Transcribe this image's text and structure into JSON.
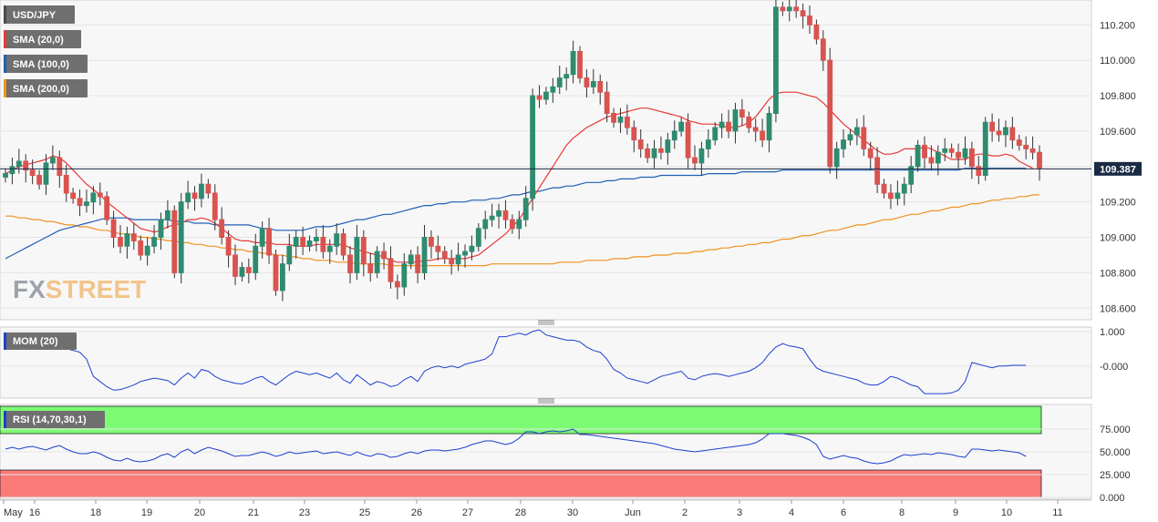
{
  "symbol": "USD/JPY",
  "legend": [
    {
      "label": "USD/JPY",
      "color": "#4a4a4a"
    },
    {
      "label": "SMA (20,0)",
      "color": "#e53935"
    },
    {
      "label": "SMA (100,0)",
      "color": "#1f5fb3"
    },
    {
      "label": "SMA (200,0)",
      "color": "#f0921e"
    }
  ],
  "watermark": {
    "part1": "FX",
    "part2": "STREET"
  },
  "current_price": "109.387",
  "x_axis_labels": [
    "May",
    "16",
    "18",
    "19",
    "20",
    "21",
    "23",
    "25",
    "26",
    "27",
    "28",
    "30",
    "Jun",
    "2",
    "3",
    "4",
    "6",
    "8",
    "9",
    "10",
    "11"
  ],
  "chart_data": [
    {
      "type": "candlestick",
      "title": "USD/JPY",
      "yticks": [
        "110.200",
        "110.000",
        "109.800",
        "109.600",
        "109.400",
        "109.200",
        "109.000",
        "108.800",
        "108.600"
      ],
      "ylim": [
        108.55,
        110.32
      ],
      "current_price": 109.387,
      "closes": [
        109.36,
        109.4,
        109.43,
        109.38,
        109.35,
        109.3,
        109.42,
        109.45,
        109.35,
        109.25,
        109.22,
        109.18,
        109.2,
        109.25,
        109.23,
        109.1,
        109.0,
        108.95,
        109.02,
        108.98,
        108.9,
        108.95,
        109.0,
        109.1,
        109.15,
        108.8,
        109.2,
        109.25,
        109.22,
        109.3,
        109.25,
        109.1,
        109.0,
        108.9,
        108.78,
        108.83,
        108.8,
        108.95,
        109.05,
        108.9,
        108.7,
        108.85,
        108.95,
        109.0,
        108.95,
        108.98,
        109.0,
        108.92,
        108.95,
        109.02,
        108.9,
        108.8,
        109.0,
        108.85,
        108.8,
        108.92,
        108.88,
        108.75,
        108.72,
        108.85,
        108.9,
        108.8,
        109.0,
        108.95,
        108.92,
        108.88,
        108.85,
        108.9,
        108.92,
        108.95,
        109.05,
        109.1,
        109.12,
        109.15,
        109.1,
        109.05,
        109.1,
        109.22,
        109.8,
        109.78,
        109.82,
        109.85,
        109.9,
        109.92,
        110.05,
        109.9,
        109.85,
        109.88,
        109.82,
        109.7,
        109.65,
        109.68,
        109.62,
        109.55,
        109.5,
        109.45,
        109.5,
        109.48,
        109.55,
        109.6,
        109.65,
        109.45,
        109.42,
        109.5,
        109.55,
        109.62,
        109.65,
        109.6,
        109.72,
        109.68,
        109.62,
        109.6,
        109.55,
        109.7,
        110.3,
        110.28,
        110.3,
        110.28,
        110.25,
        110.2,
        110.12,
        110.0,
        109.4,
        109.5,
        109.55,
        109.58,
        109.62,
        109.5,
        109.45,
        109.3,
        109.25,
        109.22,
        109.25,
        109.3,
        109.4,
        109.52,
        109.45,
        109.42,
        109.48,
        109.5,
        109.48,
        109.45,
        109.5,
        109.4,
        109.35,
        109.65,
        109.6,
        109.58,
        109.62,
        109.55,
        109.52,
        109.5,
        109.48,
        109.39
      ],
      "sma20": [
        109.36,
        109.38,
        109.4,
        109.41,
        109.42,
        109.43,
        109.44,
        109.46,
        109.45,
        109.42,
        109.38,
        109.34,
        109.3,
        109.27,
        109.24,
        109.2,
        109.17,
        109.14,
        109.11,
        109.08,
        109.05,
        109.04,
        109.03,
        109.04,
        109.06,
        109.07,
        109.08,
        109.1,
        109.1,
        109.11,
        109.1,
        109.08,
        109.05,
        109.02,
        108.99,
        108.98,
        108.98,
        108.97,
        108.97,
        108.97,
        108.96,
        108.96,
        108.96,
        108.95,
        108.95,
        108.95,
        108.96,
        108.96,
        108.96,
        108.96,
        108.96,
        108.94,
        108.93,
        108.92,
        108.91,
        108.9,
        108.89,
        108.87,
        108.86,
        108.86,
        108.86,
        108.86,
        108.87,
        108.87,
        108.88,
        108.88,
        108.88,
        108.88,
        108.88,
        108.89,
        108.9,
        108.93,
        108.96,
        108.99,
        109.02,
        109.06,
        109.1,
        109.16,
        109.22,
        109.28,
        109.34,
        109.4,
        109.46,
        109.52,
        109.56,
        109.59,
        109.62,
        109.64,
        109.66,
        109.68,
        109.69,
        109.7,
        109.71,
        109.72,
        109.73,
        109.73,
        109.72,
        109.71,
        109.7,
        109.69,
        109.68,
        109.66,
        109.65,
        109.64,
        109.64,
        109.64,
        109.63,
        109.62,
        109.62,
        109.63,
        109.65,
        109.68,
        109.73,
        109.78,
        109.81,
        109.82,
        109.82,
        109.82,
        109.81,
        109.8,
        109.79,
        109.76,
        109.72,
        109.68,
        109.64,
        109.61,
        109.58,
        109.55,
        109.52,
        109.49,
        109.47,
        109.47,
        109.48,
        109.5,
        109.5,
        109.5,
        109.51,
        109.5,
        109.48,
        109.46,
        109.44,
        109.44,
        109.44,
        109.46,
        109.47,
        109.47,
        109.46,
        109.46,
        109.47,
        109.46,
        109.43,
        109.41,
        109.39
      ],
      "sma100": [
        108.88,
        108.9,
        108.92,
        108.94,
        108.96,
        108.98,
        109.0,
        109.02,
        109.04,
        109.05,
        109.06,
        109.07,
        109.08,
        109.09,
        109.1,
        109.11,
        109.11,
        109.11,
        109.11,
        109.1,
        109.1,
        109.1,
        109.1,
        109.1,
        109.1,
        109.09,
        109.09,
        109.09,
        109.08,
        109.08,
        109.08,
        109.07,
        109.07,
        109.07,
        109.07,
        109.07,
        109.07,
        109.06,
        109.05,
        109.05,
        109.04,
        109.04,
        109.04,
        109.04,
        109.04,
        109.05,
        109.06,
        109.06,
        109.06,
        109.07,
        109.08,
        109.09,
        109.1,
        109.1,
        109.11,
        109.12,
        109.13,
        109.13,
        109.14,
        109.15,
        109.16,
        109.17,
        109.18,
        109.18,
        109.19,
        109.19,
        109.2,
        109.2,
        109.2,
        109.21,
        109.21,
        109.21,
        109.22,
        109.22,
        109.23,
        109.24,
        109.24,
        109.25,
        109.26,
        109.26,
        109.27,
        109.28,
        109.28,
        109.29,
        109.29,
        109.3,
        109.31,
        109.31,
        109.31,
        109.32,
        109.32,
        109.33,
        109.33,
        109.33,
        109.34,
        109.34,
        109.34,
        109.35,
        109.35,
        109.35,
        109.35,
        109.35,
        109.35,
        109.35,
        109.36,
        109.36,
        109.36,
        109.36,
        109.36,
        109.37,
        109.37,
        109.37,
        109.37,
        109.37,
        109.37,
        109.38,
        109.38,
        109.38,
        109.38,
        109.38,
        109.38,
        109.38,
        109.38,
        109.38,
        109.38,
        109.38,
        109.38,
        109.38,
        109.38,
        109.38,
        109.38,
        109.38,
        109.38,
        109.38,
        109.38,
        109.38,
        109.38,
        109.38,
        109.38,
        109.38,
        109.38,
        109.38,
        109.39,
        109.39,
        109.39,
        109.39,
        109.39,
        109.39,
        109.39,
        109.39,
        109.39,
        109.39
      ],
      "sma200": [
        109.12,
        109.12,
        109.11,
        109.11,
        109.1,
        109.1,
        109.09,
        109.09,
        109.08,
        109.07,
        109.07,
        109.06,
        109.06,
        109.05,
        109.04,
        109.04,
        109.03,
        109.02,
        109.02,
        109.01,
        109.0,
        109.0,
        108.99,
        108.99,
        108.98,
        108.98,
        108.97,
        108.97,
        108.96,
        108.96,
        108.95,
        108.95,
        108.94,
        108.94,
        108.93,
        108.93,
        108.92,
        108.92,
        108.91,
        108.91,
        108.9,
        108.9,
        108.89,
        108.89,
        108.88,
        108.88,
        108.87,
        108.87,
        108.87,
        108.86,
        108.86,
        108.86,
        108.85,
        108.85,
        108.85,
        108.85,
        108.85,
        108.84,
        108.84,
        108.84,
        108.84,
        108.84,
        108.84,
        108.84,
        108.84,
        108.84,
        108.84,
        108.84,
        108.84,
        108.84,
        108.84,
        108.84,
        108.85,
        108.85,
        108.85,
        108.85,
        108.85,
        108.85,
        108.85,
        108.85,
        108.85,
        108.85,
        108.86,
        108.86,
        108.86,
        108.86,
        108.87,
        108.87,
        108.87,
        108.87,
        108.88,
        108.88,
        108.88,
        108.89,
        108.89,
        108.89,
        108.9,
        108.9,
        108.9,
        108.91,
        108.91,
        108.91,
        108.92,
        108.92,
        108.93,
        108.93,
        108.94,
        108.94,
        108.95,
        108.95,
        108.96,
        108.96,
        108.97,
        108.97,
        108.98,
        108.99,
        108.99,
        109.0,
        109.01,
        109.01,
        109.02,
        109.03,
        109.04,
        109.04,
        109.05,
        109.06,
        109.07,
        109.07,
        109.08,
        109.09,
        109.1,
        109.1,
        109.11,
        109.12,
        109.13,
        109.13,
        109.14,
        109.15,
        109.15,
        109.16,
        109.17,
        109.17,
        109.18,
        109.19,
        109.19,
        109.2,
        109.21,
        109.21,
        109.22,
        109.22,
        109.23,
        109.23,
        109.24,
        109.24
      ]
    },
    {
      "type": "line",
      "title": "MOM (20)",
      "yticks": [
        "1.000",
        "-0.000"
      ],
      "ylim": [
        -0.85,
        1.05
      ],
      "values": [
        0.5,
        0.55,
        0.7,
        0.75,
        0.7,
        0.65,
        0.55,
        0.6,
        0.55,
        0.5,
        0.45,
        0.4,
        0.2,
        -0.3,
        -0.45,
        -0.6,
        -0.7,
        -0.68,
        -0.62,
        -0.55,
        -0.45,
        -0.4,
        -0.35,
        -0.38,
        -0.42,
        -0.55,
        -0.35,
        -0.2,
        -0.35,
        -0.1,
        -0.15,
        -0.3,
        -0.4,
        -0.45,
        -0.5,
        -0.52,
        -0.45,
        -0.35,
        -0.3,
        -0.45,
        -0.55,
        -0.4,
        -0.25,
        -0.15,
        -0.2,
        -0.25,
        -0.2,
        -0.28,
        -0.35,
        -0.2,
        -0.4,
        -0.5,
        -0.25,
        -0.4,
        -0.55,
        -0.45,
        -0.5,
        -0.6,
        -0.55,
        -0.4,
        -0.3,
        -0.45,
        -0.15,
        -0.05,
        0.0,
        -0.05,
        0.0,
        -0.05,
        0.05,
        0.1,
        0.15,
        0.2,
        0.35,
        0.85,
        0.85,
        0.9,
        0.95,
        0.9,
        1.0,
        1.05,
        0.9,
        0.85,
        0.8,
        0.75,
        0.75,
        0.7,
        0.55,
        0.45,
        0.4,
        0.2,
        -0.1,
        -0.2,
        -0.35,
        -0.4,
        -0.45,
        -0.5,
        -0.4,
        -0.3,
        -0.25,
        -0.2,
        -0.15,
        -0.35,
        -0.4,
        -0.3,
        -0.25,
        -0.22,
        -0.25,
        -0.3,
        -0.25,
        -0.2,
        -0.15,
        -0.05,
        0.1,
        0.35,
        0.55,
        0.65,
        0.58,
        0.55,
        0.5,
        0.2,
        -0.05,
        -0.15,
        -0.2,
        -0.25,
        -0.3,
        -0.35,
        -0.4,
        -0.5,
        -0.55,
        -0.55,
        -0.45,
        -0.3,
        -0.35,
        -0.45,
        -0.55,
        -0.6,
        -0.8,
        -0.8,
        -0.8,
        -0.8,
        -0.78,
        -0.7,
        -0.45,
        0.1,
        0.05,
        0.0,
        -0.05,
        0.0,
        0.0,
        0.02,
        0.02,
        0.02
      ]
    },
    {
      "type": "line",
      "title": "RSI (14,70,30,1)",
      "yticks": [
        "75.000",
        "50.000",
        "25.000",
        "0.000"
      ],
      "ylim": [
        0,
        100
      ],
      "overbought": 70,
      "oversold": 30,
      "values": [
        53,
        55,
        53,
        55,
        56,
        54,
        52,
        55,
        57,
        53,
        50,
        48,
        48,
        50,
        48,
        44,
        41,
        40,
        43,
        40,
        39,
        40,
        42,
        46,
        48,
        44,
        50,
        53,
        48,
        52,
        55,
        53,
        51,
        48,
        45,
        46,
        46,
        48,
        50,
        48,
        45,
        47,
        50,
        48,
        49,
        50,
        51,
        48,
        49,
        50,
        48,
        46,
        50,
        47,
        45,
        48,
        47,
        44,
        45,
        48,
        50,
        48,
        51,
        52,
        52,
        51,
        52,
        53,
        55,
        58,
        60,
        62,
        62,
        60,
        58,
        60,
        65,
        72,
        72,
        70,
        72,
        73,
        72,
        73,
        75,
        69,
        69,
        68,
        67,
        66,
        65,
        64,
        63,
        62,
        61,
        60,
        59,
        57,
        55,
        53,
        52,
        51,
        50,
        51,
        52,
        53,
        54,
        55,
        56,
        57,
        58,
        60,
        64,
        70,
        70,
        70,
        69,
        68,
        66,
        63,
        58,
        45,
        42,
        44,
        46,
        44,
        43,
        40,
        38,
        37,
        38,
        40,
        44,
        47,
        46,
        47,
        48,
        47,
        49,
        48,
        47,
        45,
        44,
        53,
        53,
        52,
        51,
        52,
        51,
        50,
        49,
        45
      ]
    }
  ]
}
